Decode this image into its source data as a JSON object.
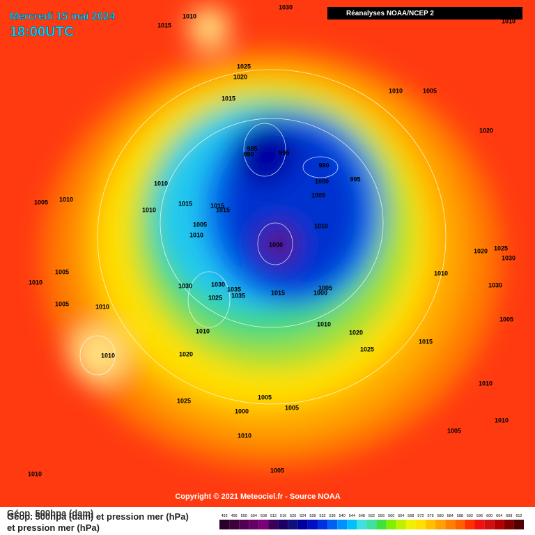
{
  "header": {
    "date": "Mercredi 15 mai 2024",
    "time": "18:00UTC",
    "source": "Réanalyses NOAA/NCEP 2"
  },
  "copyright": "Copyright © 2021 Meteociel.fr - Source NOAA",
  "legend": [
    "Géop. 500hpa (dam)",
    "Géop. 500hpa (dam) et pression mer (hPa)",
    "et pression mer (hPa)"
  ],
  "isobar_labels": [
    1010,
    1015,
    1030,
    1010,
    1025,
    1020,
    1015,
    1010,
    1005,
    1020,
    995,
    985,
    990,
    990,
    1000,
    995,
    1010,
    1005,
    1005,
    1010,
    1010,
    1015,
    1015,
    1015,
    1005,
    1010,
    1010,
    1000,
    1020,
    1025,
    1030,
    1005,
    1010,
    1010,
    1030,
    1030,
    1035,
    1005,
    1000,
    1015,
    1035,
    1030,
    1025,
    1005,
    1010,
    1005,
    1010,
    1010,
    1020,
    1015,
    1025,
    1010,
    1020,
    1010,
    1005,
    1025,
    1005,
    1000,
    1010,
    1005,
    1010,
    1005,
    1010
  ],
  "colorbar": {
    "levels": [
      492,
      496,
      500,
      504,
      508,
      512,
      516,
      520,
      524,
      528,
      532,
      536,
      540,
      544,
      548,
      552,
      556,
      560,
      564,
      568,
      572,
      576,
      580,
      584,
      588,
      592,
      596,
      600,
      604,
      608,
      612
    ],
    "colors": [
      "#2a002a",
      "#3d003d",
      "#520052",
      "#660066",
      "#7a007a",
      "#3a005a",
      "#1a0066",
      "#10107a",
      "#0000a0",
      "#0010c0",
      "#0030e0",
      "#0060f0",
      "#0090ff",
      "#00c0ff",
      "#40e0e0",
      "#40e0a0",
      "#40e040",
      "#80f000",
      "#c0f000",
      "#f0f000",
      "#ffe000",
      "#ffc000",
      "#ffa000",
      "#ff8000",
      "#ff6000",
      "#ff3000",
      "#f01010",
      "#d01010",
      "#b00000",
      "#800000",
      "#500000"
    ]
  }
}
